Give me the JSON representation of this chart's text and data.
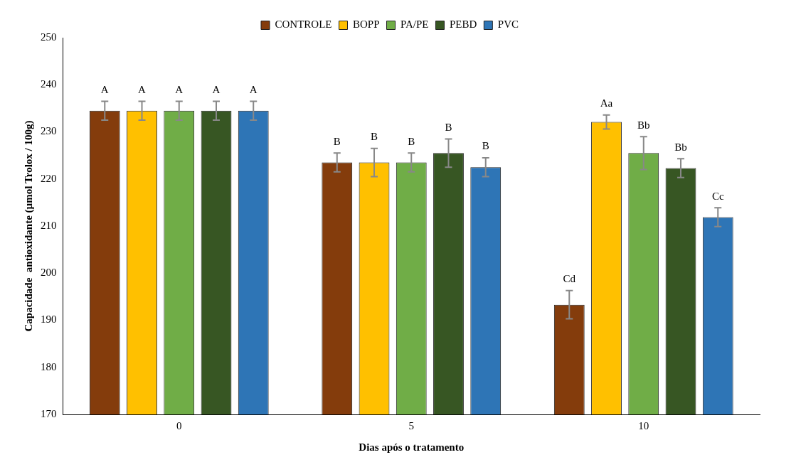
{
  "chart_data": {
    "type": "bar",
    "xlabel": "Dias após o tratamento",
    "ylabel": "Capacidade  antioxidante (µmol Trolox / 100g)",
    "categories": [
      "0",
      "5",
      "10"
    ],
    "series": [
      {
        "name": "CONTROLE",
        "color": "#843c0c",
        "values": [
          234.5,
          223.5,
          193.3
        ],
        "errors": [
          2,
          2,
          3
        ],
        "value_labels": [
          "A",
          "B",
          "Cd"
        ]
      },
      {
        "name": "BOPP",
        "color": "#ffc000",
        "values": [
          234.5,
          223.5,
          232.1
        ],
        "errors": [
          2,
          3,
          1.5
        ],
        "value_labels": [
          "A",
          "B",
          "Aa"
        ]
      },
      {
        "name": "PA/PE",
        "color": "#70ad47",
        "values": [
          234.5,
          223.5,
          225.5
        ],
        "errors": [
          2,
          2,
          3.5
        ],
        "value_labels": [
          "A",
          "B",
          "Bb"
        ]
      },
      {
        "name": "PEBD",
        "color": "#375623",
        "values": [
          234.5,
          225.5,
          222.3
        ],
        "errors": [
          2,
          3,
          2
        ],
        "value_labels": [
          "A",
          "B",
          "Bb"
        ]
      },
      {
        "name": "PVC",
        "color": "#2e75b6",
        "values": [
          234.5,
          222.5,
          211.9
        ],
        "errors": [
          2,
          2,
          2
        ],
        "value_labels": [
          "A",
          "B",
          "Cc"
        ]
      }
    ],
    "ylim": [
      170,
      250
    ],
    "yticks": [
      170,
      180,
      190,
      200,
      210,
      220,
      230,
      240,
      250
    ],
    "grid": false,
    "legend": "top"
  }
}
